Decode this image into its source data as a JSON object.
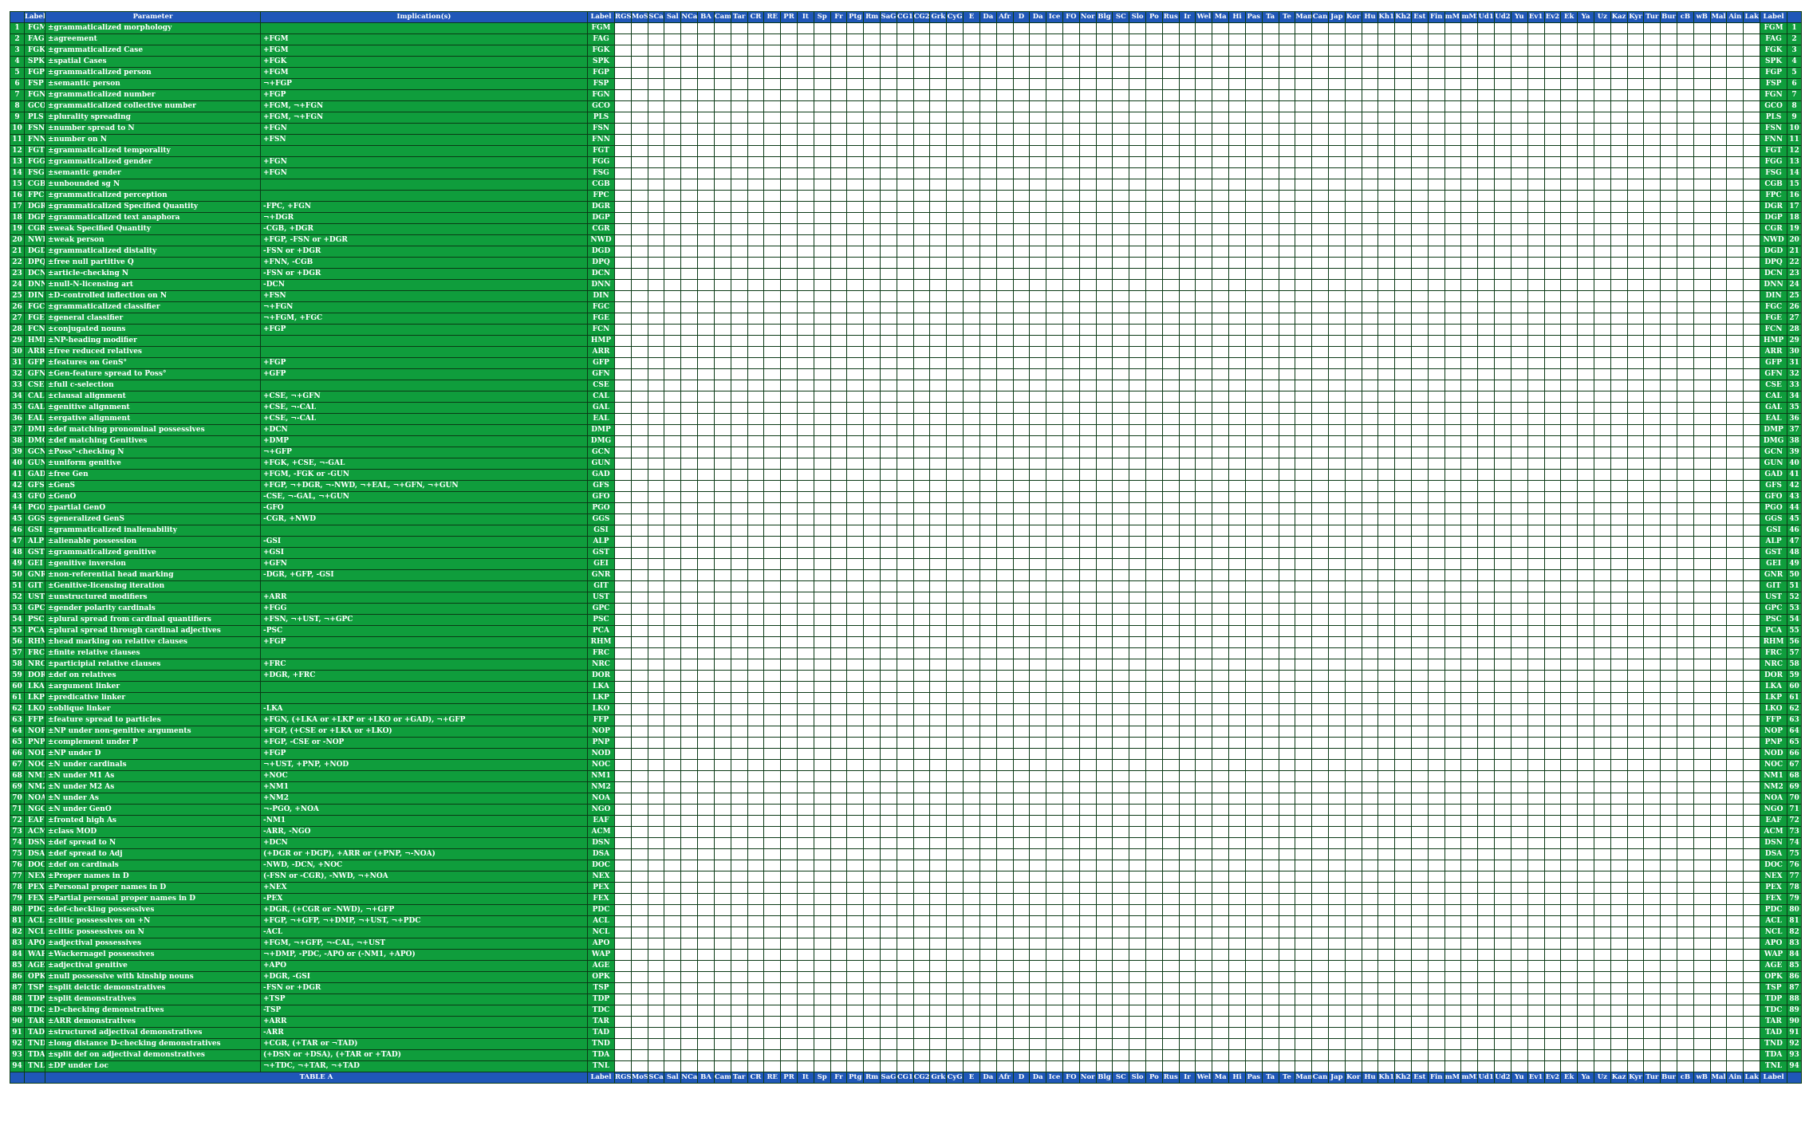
{
  "table": {
    "header": {
      "num": "",
      "label": "Label",
      "parameter": "Parameter",
      "implications": "Implication(s)",
      "label2": "Label",
      "label3": "Label",
      "num2": ""
    },
    "languages": [
      "RGS",
      "MoS",
      "SCa",
      "Sal",
      "NCa",
      "BA",
      "Cam",
      "Tar",
      "CR",
      "RE",
      "PR",
      "It",
      "Sp",
      "Fr",
      "Ptg",
      "Rm",
      "SaG",
      "CG1",
      "CG2",
      "Grk",
      "CyG",
      "E",
      "Da",
      "Afr",
      "D",
      "Da",
      "Ice",
      "FO",
      "Nor",
      "Blg",
      "SC",
      "Slo",
      "Po",
      "Rus",
      "Ir",
      "Wel",
      "Ma",
      "Hi",
      "Pas",
      "Ta",
      "Te",
      "Man",
      "Can",
      "Jap",
      "Kor",
      "Hu",
      "Kh1",
      "Kh2",
      "Est",
      "Fin",
      "mM1",
      "mM2",
      "Ud1",
      "Ud2",
      "Yu",
      "Ev1",
      "Ev2",
      "Ek",
      "Ya",
      "Uz",
      "Kaz",
      "Kyr",
      "Tur",
      "Bur",
      "cB",
      "wB",
      "Mal",
      "Ain",
      "Lak"
    ],
    "footer_label": "TABLE A",
    "rows": [
      {
        "n": "1",
        "l": "FGM",
        "p": "±grammaticalized morphology",
        "i": ""
      },
      {
        "n": "2",
        "l": "FAG",
        "p": "±agreement",
        "i": "+FGM"
      },
      {
        "n": "3",
        "l": "FGK",
        "p": "±grammaticalized Case",
        "i": "+FGM"
      },
      {
        "n": "4",
        "l": "SPK",
        "p": "±spatial Cases",
        "i": "+FGK"
      },
      {
        "n": "5",
        "l": "FGP",
        "p": "±grammaticalized person",
        "i": "+FGM"
      },
      {
        "n": "6",
        "l": "FSP",
        "p": "±semantic person",
        "i": "¬+FGP"
      },
      {
        "n": "7",
        "l": "FGN",
        "p": "±grammaticalized number",
        "i": "+FGP"
      },
      {
        "n": "8",
        "l": "GCO",
        "p": "±grammaticalized collective number",
        "i": "+FGM, ¬+FGN"
      },
      {
        "n": "9",
        "l": "PLS",
        "p": "±plurality spreading",
        "i": "+FGM, ¬+FGN"
      },
      {
        "n": "10",
        "l": "FSN",
        "p": "±number spread to N",
        "i": "+FGN"
      },
      {
        "n": "11",
        "l": "FNN",
        "p": "±number on N",
        "i": "+FSN"
      },
      {
        "n": "12",
        "l": "FGT",
        "p": "±grammaticalized temporality",
        "i": ""
      },
      {
        "n": "13",
        "l": "FGG",
        "p": "±grammaticalized gender",
        "i": "+FGN"
      },
      {
        "n": "14",
        "l": "FSG",
        "p": "±semantic gender",
        "i": "+FGN"
      },
      {
        "n": "15",
        "l": "CGB",
        "p": "±unbounded sg N",
        "i": ""
      },
      {
        "n": "16",
        "l": "FPC",
        "p": "±grammaticalized perception",
        "i": ""
      },
      {
        "n": "17",
        "l": "DGR",
        "p": "±grammaticalized Specified Quantity",
        "i": "-FPC, +FGN"
      },
      {
        "n": "18",
        "l": "DGP",
        "p": "±grammaticalized text anaphora",
        "i": "¬+DGR"
      },
      {
        "n": "19",
        "l": "CGR",
        "p": "±weak Specified Quantity",
        "i": "-CGB, +DGR"
      },
      {
        "n": "20",
        "l": "NWD",
        "p": "±weak person",
        "i": "+FGP, -FSN or +DGR"
      },
      {
        "n": "21",
        "l": "DGD",
        "p": "±grammaticalized distality",
        "i": "-FSN or +DGR"
      },
      {
        "n": "22",
        "l": "DPQ",
        "p": "±free null partitive Q",
        "i": "+FNN, -CGB"
      },
      {
        "n": "23",
        "l": "DCN",
        "p": "±article-checking N",
        "i": "-FSN or +DGR"
      },
      {
        "n": "24",
        "l": "DNN",
        "p": "±null-N-licensing art",
        "i": "-DCN"
      },
      {
        "n": "25",
        "l": "DIN",
        "p": "±D-controlled inflection on N",
        "i": "+FSN"
      },
      {
        "n": "26",
        "l": "FGC",
        "p": "±grammaticalized classifier",
        "i": "¬+FGN"
      },
      {
        "n": "27",
        "l": "FGE",
        "p": "±general classifier",
        "i": "¬+FGM, +FGC"
      },
      {
        "n": "28",
        "l": "FCN",
        "p": "±conjugated nouns",
        "i": "+FGP"
      },
      {
        "n": "29",
        "l": "HMP",
        "p": "±NP-heading modifier",
        "i": ""
      },
      {
        "n": "30",
        "l": "ARR",
        "p": "±free reduced relatives",
        "i": ""
      },
      {
        "n": "31",
        "l": "GFP",
        "p": "±features on GenS°",
        "i": "+FGP"
      },
      {
        "n": "32",
        "l": "GFN",
        "p": "±Gen-feature spread to Poss°",
        "i": "+GFP"
      },
      {
        "n": "33",
        "l": "CSE",
        "p": "±full c-selection",
        "i": ""
      },
      {
        "n": "34",
        "l": "CAL",
        "p": "±clausal alignment",
        "i": "+CSE, ¬+GFN"
      },
      {
        "n": "35",
        "l": "GAL",
        "p": "±genitive alignment",
        "i": "+CSE, ¬-CAL"
      },
      {
        "n": "36",
        "l": "EAL",
        "p": "±ergative alignment",
        "i": "+CSE, ¬-CAL"
      },
      {
        "n": "37",
        "l": "DMP",
        "p": "±def matching pronominal possessives",
        "i": "+DCN"
      },
      {
        "n": "38",
        "l": "DMG",
        "p": "±def matching Genitives",
        "i": "+DMP"
      },
      {
        "n": "39",
        "l": "GCN",
        "p": "±Poss°-checking N",
        "i": "¬+GFP"
      },
      {
        "n": "40",
        "l": "GUN",
        "p": "±uniform genitive",
        "i": "+FGK, +CSE, ¬-GAL"
      },
      {
        "n": "41",
        "l": "GAD",
        "p": "±free Gen",
        "i": "+FGM, -FGK or -GUN"
      },
      {
        "n": "42",
        "l": "GFS",
        "p": "±GenS",
        "i": "+FGP, ¬+DGR, ¬-NWD, ¬+EAL, ¬+GFN, ¬+GUN"
      },
      {
        "n": "43",
        "l": "GFO",
        "p": "±GenO",
        "i": "-CSE, ¬-GAL, ¬+GUN"
      },
      {
        "n": "44",
        "l": "PGO",
        "p": "±partial GenO",
        "i": "-GFO"
      },
      {
        "n": "45",
        "l": "GGS",
        "p": "±generalized GenS",
        "i": "-CGR, +NWD"
      },
      {
        "n": "46",
        "l": "GSI",
        "p": "±grammaticalized inalienability",
        "i": ""
      },
      {
        "n": "47",
        "l": "ALP",
        "p": "±alienable possession",
        "i": "-GSI"
      },
      {
        "n": "48",
        "l": "GST",
        "p": "±grammaticalized genitive",
        "i": "+GSI"
      },
      {
        "n": "49",
        "l": "GEI",
        "p": "±genitive inversion",
        "i": "+GFN"
      },
      {
        "n": "50",
        "l": "GNR",
        "p": "±non-referential head marking",
        "i": "-DGR, +GFP, -GSI"
      },
      {
        "n": "51",
        "l": "GIT",
        "p": "±Genitive-licensing iteration",
        "i": ""
      },
      {
        "n": "52",
        "l": "UST",
        "p": "±unstructured modifiers",
        "i": "+ARR"
      },
      {
        "n": "53",
        "l": "GPC",
        "p": "±gender polarity cardinals",
        "i": "+FGG"
      },
      {
        "n": "54",
        "l": "PSC",
        "p": "±plural spread from cardinal quantifiers",
        "i": "+FSN, ¬+UST, ¬+GPC"
      },
      {
        "n": "55",
        "l": "PCA",
        "p": "±plural spread through cardinal adjectives",
        "i": "-PSC"
      },
      {
        "n": "56",
        "l": "RHM",
        "p": "±head marking on relative clauses",
        "i": "+FGP"
      },
      {
        "n": "57",
        "l": "FRC",
        "p": "±finite relative clauses",
        "i": ""
      },
      {
        "n": "58",
        "l": "NRC",
        "p": "±participial relative clauses",
        "i": "+FRC"
      },
      {
        "n": "59",
        "l": "DOR",
        "p": "±def on relatives",
        "i": "+DGR, +FRC"
      },
      {
        "n": "60",
        "l": "LKA",
        "p": "±argument linker",
        "i": ""
      },
      {
        "n": "61",
        "l": "LKP",
        "p": "±predicative linker",
        "i": ""
      },
      {
        "n": "62",
        "l": "LKO",
        "p": "±oblique linker",
        "i": "-LKA"
      },
      {
        "n": "63",
        "l": "FFP",
        "p": "±feature spread to particles",
        "i": "+FGN, (+LKA or +LKP or +LKO or +GAD), ¬+GFP"
      },
      {
        "n": "64",
        "l": "NOP",
        "p": "±NP under non-genitive arguments",
        "i": "+FGP, (+CSE or +LKA or +LKO)"
      },
      {
        "n": "65",
        "l": "PNP",
        "p": "±complement under P",
        "i": "+FGP, -CSE or -NOP"
      },
      {
        "n": "66",
        "l": "NOD",
        "p": "±NP under D",
        "i": "+FGP"
      },
      {
        "n": "67",
        "l": "NOC",
        "p": "±N under cardinals",
        "i": "¬+UST, +PNP, +NOD"
      },
      {
        "n": "68",
        "l": "NM1",
        "p": "±N under M1 As",
        "i": "+NOC"
      },
      {
        "n": "69",
        "l": "NM2",
        "p": "±N under M2 As",
        "i": "+NM1"
      },
      {
        "n": "70",
        "l": "NOA",
        "p": "±N under As",
        "i": "+NM2"
      },
      {
        "n": "71",
        "l": "NGO",
        "p": "±N under GenO",
        "i": "¬-PGO, +NOA"
      },
      {
        "n": "72",
        "l": "EAF",
        "p": "±fronted high As",
        "i": "-NM1"
      },
      {
        "n": "73",
        "l": "ACM",
        "p": "±class MOD",
        "i": "-ARR, -NGO"
      },
      {
        "n": "74",
        "l": "DSN",
        "p": "±def spread to N",
        "i": "+DCN"
      },
      {
        "n": "75",
        "l": "DSA",
        "p": "±def spread to Adj",
        "i": "(+DGR or +DGP), +ARR or (+PNP, ¬-NOA)"
      },
      {
        "n": "76",
        "l": "DOC",
        "p": "±def on cardinals",
        "i": "-NWD, -DCN, +NOC"
      },
      {
        "n": "77",
        "l": "NEX",
        "p": "±Proper names in D",
        "i": "(-FSN or -CGR), -NWD, ¬+NOA"
      },
      {
        "n": "78",
        "l": "PEX",
        "p": "±Personal proper names in D",
        "i": "+NEX"
      },
      {
        "n": "79",
        "l": "FEX",
        "p": "±Partial personal proper names in D",
        "i": "-PEX"
      },
      {
        "n": "80",
        "l": "PDC",
        "p": "±def-checking possessives",
        "i": "+DGR, (+CGR or -NWD), ¬+GFP"
      },
      {
        "n": "81",
        "l": "ACL",
        "p": "±clitic possessives on +N",
        "i": "+FGP, ¬+GFP, ¬+DMP, ¬+UST, ¬+PDC"
      },
      {
        "n": "82",
        "l": "NCL",
        "p": "±clitic possessives on N",
        "i": "-ACL"
      },
      {
        "n": "83",
        "l": "APO",
        "p": "±adjectival possessives",
        "i": "+FGM, ¬+GFP, ¬-CAL, ¬+UST"
      },
      {
        "n": "84",
        "l": "WAP",
        "p": "±Wackernagel possessives",
        "i": "¬+DMP, -PDC, -APO or (-NM1, +APO)"
      },
      {
        "n": "85",
        "l": "AGE",
        "p": "±adjectival genitive",
        "i": "+APO"
      },
      {
        "n": "86",
        "l": "OPK",
        "p": "±null possessive with kinship nouns",
        "i": "+DGR, -GSI"
      },
      {
        "n": "87",
        "l": "TSP",
        "p": "±split deictic demonstratives",
        "i": "-FSN or +DGR"
      },
      {
        "n": "88",
        "l": "TDP",
        "p": "±split demonstratives",
        "i": "+TSP"
      },
      {
        "n": "89",
        "l": "TDC",
        "p": "±D-checking demonstratives",
        "i": "-TSP"
      },
      {
        "n": "90",
        "l": "TAR",
        "p": "±ARR demonstratives",
        "i": "+ARR"
      },
      {
        "n": "91",
        "l": "TAD",
        "p": "±structured adjectival demonstratives",
        "i": "-ARR"
      },
      {
        "n": "92",
        "l": "TND",
        "p": "±long distance D-checking demonstratives",
        "i": "+CGR, (+TAR or ¬TAD)"
      },
      {
        "n": "93",
        "l": "TDA",
        "p": "±split def on adjectival demonstratives",
        "i": "(+DSN or +DSA), (+TAR or +TAD)"
      },
      {
        "n": "94",
        "l": "TNL",
        "p": "±DP under Loc",
        "i": "¬+TDC, ¬+TAR, ¬+TAD"
      }
    ]
  }
}
